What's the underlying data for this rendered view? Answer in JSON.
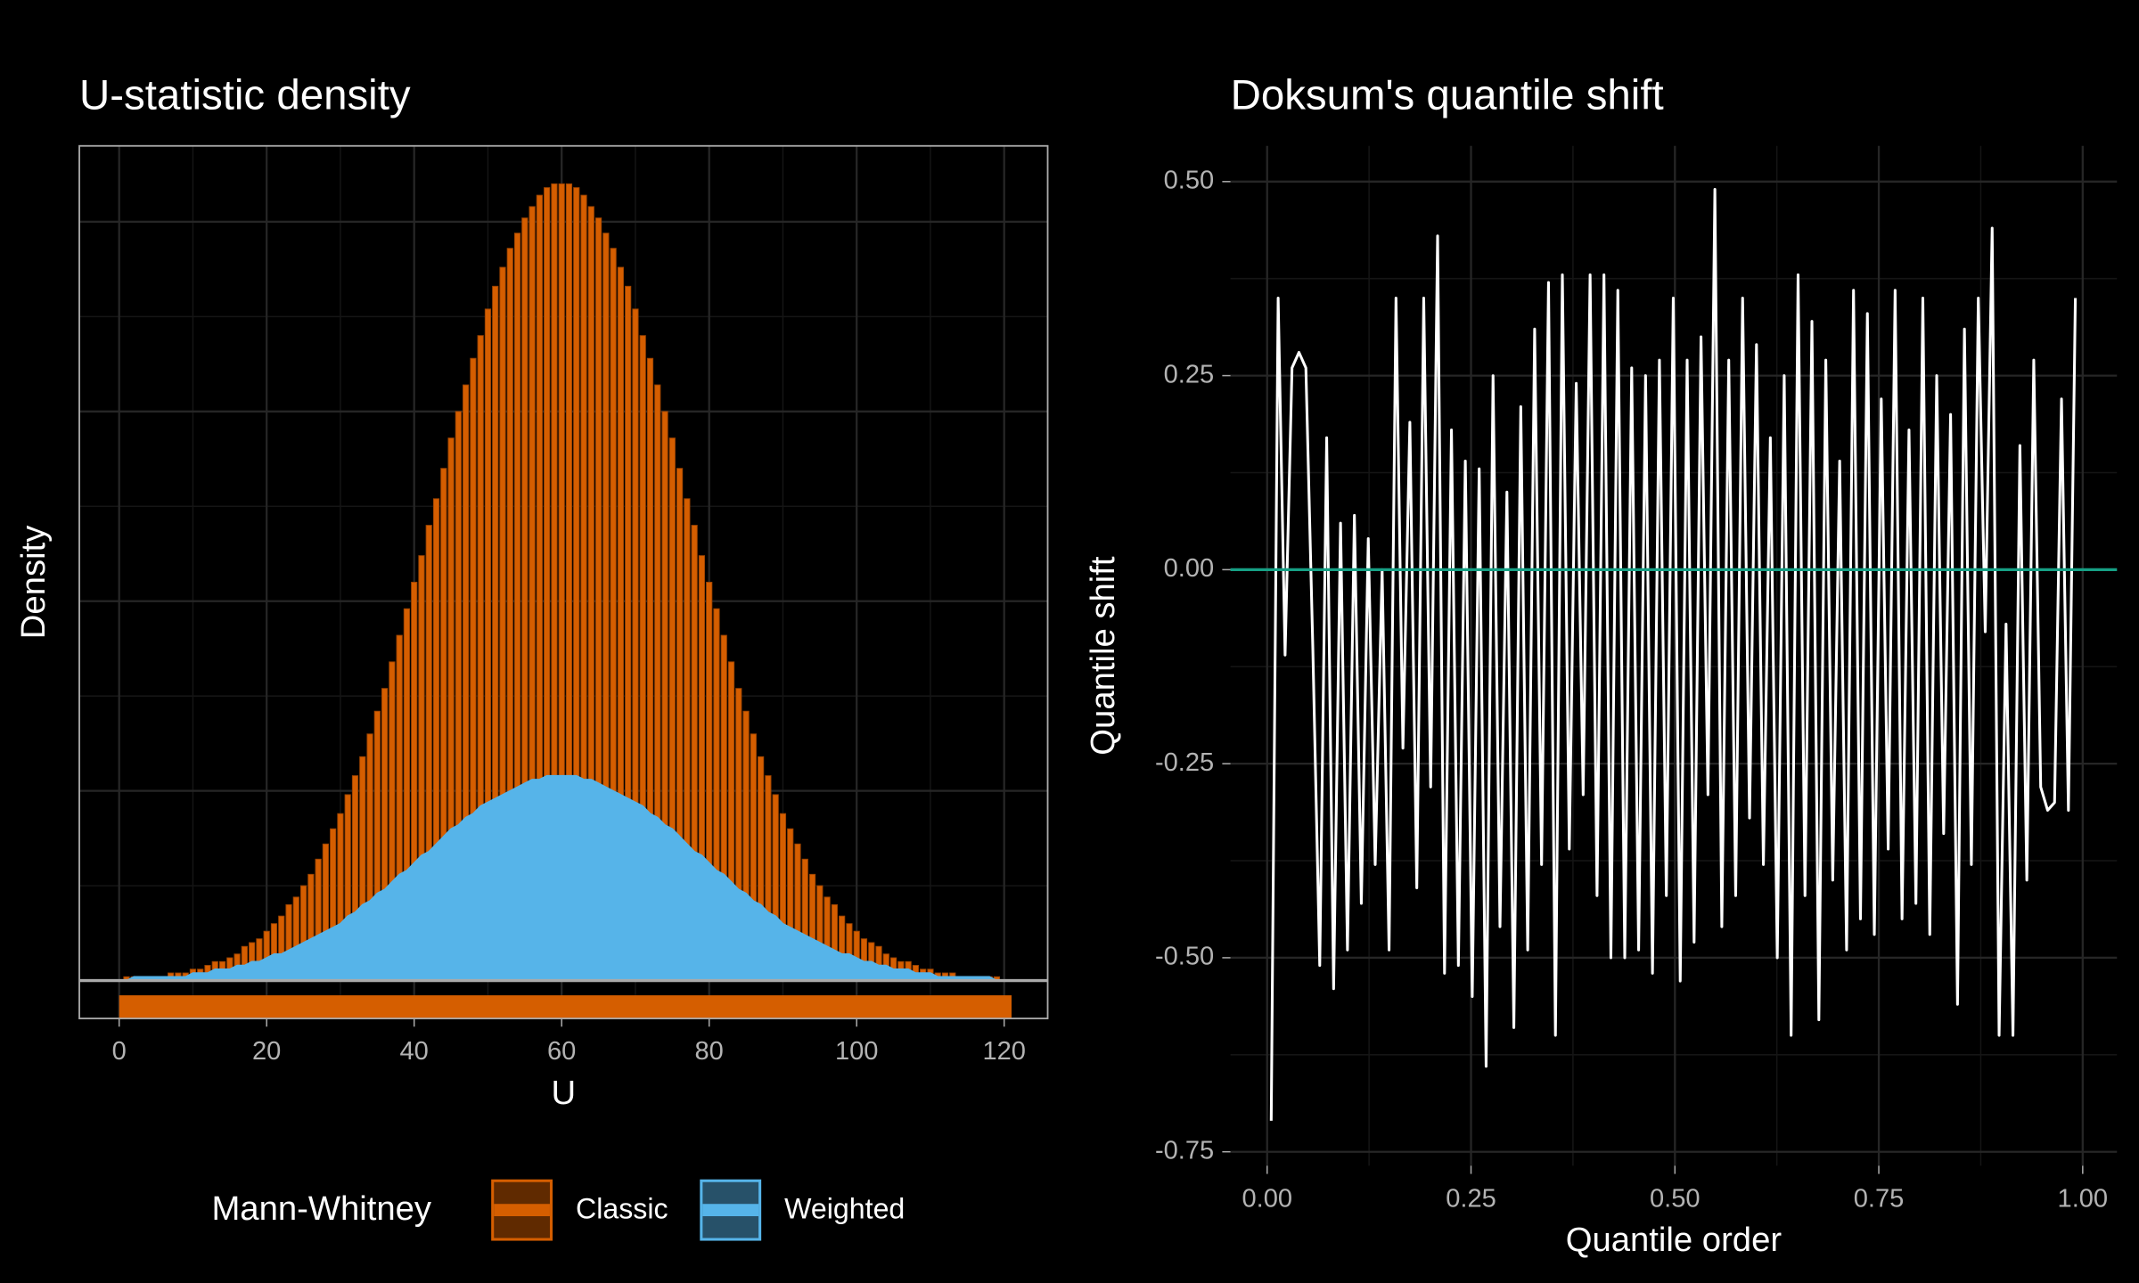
{
  "chart_data": [
    {
      "type": "bar",
      "title": "U-statistic density",
      "x_label": "U",
      "y_label": "Density",
      "x": [
        0,
        1,
        2,
        3,
        4,
        5,
        6,
        7,
        8,
        9,
        10,
        11,
        12,
        13,
        14,
        15,
        16,
        17,
        18,
        19,
        20,
        21,
        22,
        23,
        24,
        25,
        26,
        27,
        28,
        29,
        30,
        31,
        32,
        33,
        34,
        35,
        36,
        37,
        38,
        39,
        40,
        41,
        42,
        43,
        44,
        45,
        46,
        47,
        48,
        49,
        50,
        51,
        52,
        53,
        54,
        55,
        56,
        57,
        58,
        59,
        60,
        61,
        62,
        63,
        64,
        65,
        66,
        67,
        68,
        69,
        70,
        71,
        72,
        73,
        74,
        75,
        76,
        77,
        78,
        79,
        80,
        81,
        82,
        83,
        84,
        85,
        86,
        87,
        88,
        89,
        90,
        91,
        92,
        93,
        94,
        95,
        96,
        97,
        98,
        99,
        100,
        101,
        102,
        103,
        104,
        105,
        106,
        107,
        108,
        109,
        110,
        111,
        112,
        113,
        114,
        115,
        116,
        117,
        118,
        119,
        120
      ],
      "series": [
        {
          "name": "Classic",
          "mark": "bar",
          "color": "#d55e00",
          "values": [
            0,
            0.0001,
            0.0001,
            0.0001,
            0.0001,
            0.0001,
            0.0001,
            0.0002,
            0.0002,
            0.0002,
            0.0003,
            0.0003,
            0.0004,
            0.0005,
            0.0005,
            0.0006,
            0.0007,
            0.0009,
            0.001,
            0.0011,
            0.0013,
            0.0015,
            0.0017,
            0.002,
            0.0022,
            0.0025,
            0.0028,
            0.0032,
            0.0036,
            0.004,
            0.0044,
            0.0049,
            0.0054,
            0.0059,
            0.0065,
            0.0071,
            0.0077,
            0.0084,
            0.0091,
            0.0098,
            0.0105,
            0.0112,
            0.012,
            0.0127,
            0.0135,
            0.0143,
            0.015,
            0.0157,
            0.0164,
            0.017,
            0.0177,
            0.0183,
            0.0188,
            0.0193,
            0.0197,
            0.0201,
            0.0204,
            0.0207,
            0.0209,
            0.021,
            0.021,
            0.021,
            0.0209,
            0.0207,
            0.0204,
            0.0201,
            0.0197,
            0.0193,
            0.0188,
            0.0183,
            0.0177,
            0.017,
            0.0164,
            0.0157,
            0.015,
            0.0143,
            0.0135,
            0.0127,
            0.012,
            0.0112,
            0.0105,
            0.0098,
            0.0091,
            0.0084,
            0.0077,
            0.0071,
            0.0065,
            0.0059,
            0.0054,
            0.0049,
            0.0044,
            0.004,
            0.0036,
            0.0032,
            0.0028,
            0.0025,
            0.0022,
            0.002,
            0.0017,
            0.0015,
            0.0013,
            0.0011,
            0.001,
            0.0009,
            0.0007,
            0.0006,
            0.0005,
            0.0005,
            0.0004,
            0.0003,
            0.0003,
            0.0002,
            0.0002,
            0.0002,
            0.0001,
            0.0001,
            0.0001,
            0.0001,
            0.0001,
            0.0001,
            0
          ]
        },
        {
          "name": "Weighted",
          "mark": "area",
          "color": "#56b4e9",
          "values": [
            0,
            0,
            0.0001,
            0.0001,
            0.0001,
            0.0001,
            0.0001,
            0.0001,
            0.0001,
            0.0001,
            0.0002,
            0.0002,
            0.0002,
            0.0003,
            0.0003,
            0.0003,
            0.0004,
            0.0004,
            0.0005,
            0.0005,
            0.0006,
            0.0007,
            0.0007,
            0.0008,
            0.0009,
            0.001,
            0.0011,
            0.0012,
            0.0013,
            0.0014,
            0.0015,
            0.0017,
            0.0018,
            0.002,
            0.0021,
            0.0023,
            0.0024,
            0.0026,
            0.0028,
            0.0029,
            0.0031,
            0.0033,
            0.0034,
            0.0036,
            0.0038,
            0.004,
            0.0041,
            0.0043,
            0.0044,
            0.0046,
            0.0047,
            0.0048,
            0.0049,
            0.005,
            0.0051,
            0.0052,
            0.0053,
            0.0053,
            0.0054,
            0.0054,
            0.0054,
            0.0054,
            0.0054,
            0.0053,
            0.0053,
            0.0052,
            0.0051,
            0.005,
            0.0049,
            0.0048,
            0.0047,
            0.0046,
            0.0044,
            0.0043,
            0.0041,
            0.004,
            0.0038,
            0.0036,
            0.0034,
            0.0033,
            0.0031,
            0.0029,
            0.0028,
            0.0026,
            0.0024,
            0.0023,
            0.0021,
            0.002,
            0.0018,
            0.0017,
            0.0015,
            0.0014,
            0.0013,
            0.0012,
            0.0011,
            0.001,
            0.0009,
            0.0008,
            0.0007,
            0.0007,
            0.0006,
            0.0005,
            0.0005,
            0.0004,
            0.0004,
            0.0003,
            0.0003,
            0.0003,
            0.0002,
            0.0002,
            0.0002,
            0.0001,
            0.0001,
            0.0001,
            0.0001,
            0.0001,
            0.0001,
            0.0001,
            0.0001,
            0,
            0
          ]
        }
      ],
      "xlim": [
        -5.4,
        125.9
      ],
      "xticks": [
        0,
        20,
        40,
        60,
        80,
        100,
        120
      ],
      "ylim": [
        -0.001,
        0.022
      ],
      "yticks": [
        0,
        0.005,
        0.01,
        0.015,
        0.02
      ],
      "ytick_labels": false,
      "reference_line": {
        "value": 0,
        "color": "#aaaaaa"
      },
      "grid": true,
      "legend": {
        "title": "Mann-Whitney",
        "position": "bottom"
      }
    },
    {
      "type": "line",
      "title": "Doksum's quantile shift",
      "x_label": "Quantile order",
      "y_label": "Quantile shift",
      "color": "#ffffff",
      "x": [
        0.005,
        0.0135,
        0.022,
        0.0305,
        0.039,
        0.0475,
        0.056,
        0.0645,
        0.073,
        0.0815,
        0.09,
        0.0985,
        0.107,
        0.1155,
        0.124,
        0.1325,
        0.141,
        0.1495,
        0.158,
        0.1665,
        0.175,
        0.1835,
        0.192,
        0.2005,
        0.209,
        0.2175,
        0.226,
        0.2345,
        0.243,
        0.2515,
        0.26,
        0.2685,
        0.277,
        0.2855,
        0.294,
        0.3025,
        0.311,
        0.3195,
        0.328,
        0.3365,
        0.345,
        0.3535,
        0.362,
        0.3705,
        0.379,
        0.3875,
        0.396,
        0.4045,
        0.413,
        0.4215,
        0.43,
        0.4385,
        0.447,
        0.4555,
        0.464,
        0.4725,
        0.481,
        0.4895,
        0.498,
        0.5065,
        0.515,
        0.5235,
        0.532,
        0.5405,
        0.549,
        0.5575,
        0.566,
        0.5745,
        0.583,
        0.5915,
        0.6,
        0.6085,
        0.617,
        0.6255,
        0.634,
        0.6425,
        0.651,
        0.6595,
        0.668,
        0.6765,
        0.685,
        0.6935,
        0.702,
        0.7105,
        0.719,
        0.7275,
        0.736,
        0.7445,
        0.753,
        0.7615,
        0.77,
        0.7785,
        0.787,
        0.7955,
        0.804,
        0.8125,
        0.821,
        0.8295,
        0.838,
        0.8465,
        0.855,
        0.8635,
        0.872,
        0.8805,
        0.889,
        0.8975,
        0.906,
        0.9145,
        0.923,
        0.9315,
        0.94,
        0.9485,
        0.957,
        0.9655,
        0.974,
        0.9825,
        0.991
      ],
      "values": [
        -0.71,
        0.35,
        -0.11,
        0.26,
        0.28,
        0.26,
        -0.1,
        -0.51,
        0.17,
        -0.54,
        0.06,
        -0.49,
        0.07,
        -0.43,
        0.04,
        -0.38,
        0.0,
        -0.49,
        0.35,
        -0.23,
        0.19,
        -0.41,
        0.35,
        -0.28,
        0.43,
        -0.52,
        0.18,
        -0.51,
        0.14,
        -0.55,
        0.13,
        -0.64,
        0.25,
        -0.46,
        0.1,
        -0.59,
        0.21,
        -0.49,
        0.31,
        -0.38,
        0.37,
        -0.6,
        0.38,
        -0.36,
        0.24,
        -0.29,
        0.38,
        -0.42,
        0.38,
        -0.5,
        0.36,
        -0.5,
        0.26,
        -0.49,
        0.25,
        -0.52,
        0.27,
        -0.42,
        0.35,
        -0.53,
        0.27,
        -0.48,
        0.3,
        -0.29,
        0.49,
        -0.46,
        0.27,
        -0.42,
        0.35,
        -0.32,
        0.29,
        -0.38,
        0.17,
        -0.5,
        0.25,
        -0.6,
        0.38,
        -0.42,
        0.32,
        -0.58,
        0.27,
        -0.4,
        0.14,
        -0.49,
        0.36,
        -0.45,
        0.33,
        -0.47,
        0.22,
        -0.36,
        0.36,
        -0.45,
        0.18,
        -0.43,
        0.35,
        -0.47,
        0.25,
        -0.34,
        0.2,
        -0.56,
        0.31,
        -0.38,
        0.35,
        -0.08,
        0.44,
        -0.6,
        -0.07,
        -0.6,
        0.16,
        -0.4,
        0.27,
        -0.28,
        -0.31,
        -0.3,
        0.22,
        -0.31,
        0.35
      ],
      "xlim": [
        -0.045,
        1.042
      ],
      "xticks": [
        {
          "value": 0,
          "label": "0.00"
        },
        {
          "value": 0.25,
          "label": "0.25"
        },
        {
          "value": 0.5,
          "label": "0.50"
        },
        {
          "value": 0.75,
          "label": "0.75"
        },
        {
          "value": 1,
          "label": "1.00"
        }
      ],
      "ylim": [
        -0.768,
        0.546
      ],
      "yticks": [
        {
          "value": -0.75,
          "label": "-0.75"
        },
        {
          "value": -0.5,
          "label": "-0.50"
        },
        {
          "value": -0.25,
          "label": "-0.25"
        },
        {
          "value": 0,
          "label": "0.00"
        },
        {
          "value": 0.25,
          "label": "0.25"
        },
        {
          "value": 0.5,
          "label": "0.50"
        }
      ],
      "ytick_labels": true,
      "reference_line": {
        "value": 0,
        "color": "#16a085"
      },
      "grid": true
    }
  ]
}
